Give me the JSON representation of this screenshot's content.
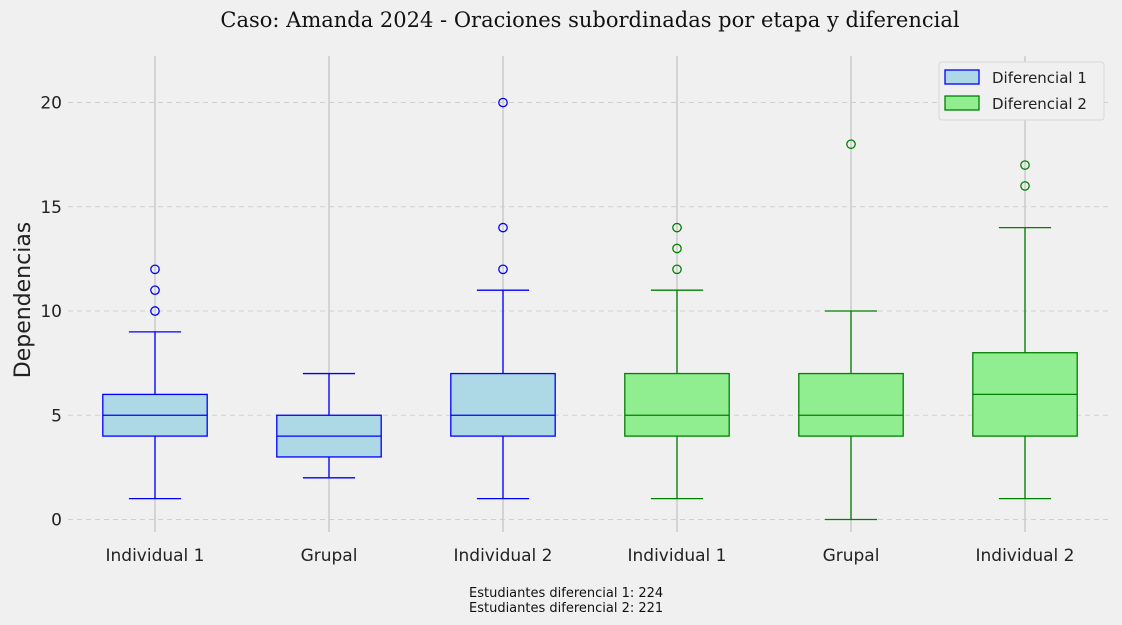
{
  "chart_data": {
    "type": "boxplot",
    "title": "Caso: Amanda 2024 - Oraciones subordinadas por etapa y diferencial",
    "xlabel": "",
    "ylabel": "Dependencias",
    "ylim": [
      -0.6,
      23
    ],
    "yticks": [
      0,
      5,
      10,
      15,
      20
    ],
    "grid": "dashed horizontal, solid vertical",
    "legend_position": "top-right",
    "categories": [
      "Individual 1",
      "Grupal",
      "Individual 2",
      "Individual 1",
      "Grupal",
      "Individual 2"
    ],
    "series": [
      {
        "name": "Diferencial 1",
        "fill": "#add8e6",
        "edge": "#0000ff",
        "boxes": [
          {
            "category": "Individual 1",
            "whisker_low": 1,
            "q1": 4,
            "median": 5,
            "q3": 6,
            "whisker_high": 9,
            "outliers": [
              10,
              11,
              12
            ]
          },
          {
            "category": "Grupal",
            "whisker_low": 2,
            "q1": 3,
            "median": 4,
            "q3": 5,
            "whisker_high": 7,
            "outliers": []
          },
          {
            "category": "Individual 2",
            "whisker_low": 1,
            "q1": 4,
            "median": 5,
            "q3": 7,
            "whisker_high": 11,
            "outliers": [
              12,
              14,
              20
            ]
          }
        ]
      },
      {
        "name": "Diferencial 2",
        "fill": "#90ee90",
        "edge": "#008000",
        "boxes": [
          {
            "category": "Individual 1",
            "whisker_low": 1,
            "q1": 4,
            "median": 5,
            "q3": 7,
            "whisker_high": 11,
            "outliers": [
              12,
              13,
              14
            ]
          },
          {
            "category": "Grupal",
            "whisker_low": 0,
            "q1": 4,
            "median": 5,
            "q3": 7,
            "whisker_high": 10,
            "outliers": [
              18
            ]
          },
          {
            "category": "Individual 2",
            "whisker_low": 1,
            "q1": 4,
            "median": 6,
            "q3": 8,
            "whisker_high": 14,
            "outliers": [
              16,
              17,
              21
            ]
          }
        ]
      }
    ],
    "annotations": [
      "Estudiantes diferencial 1: 224",
      "Estudiantes diferencial 2: 221"
    ]
  }
}
